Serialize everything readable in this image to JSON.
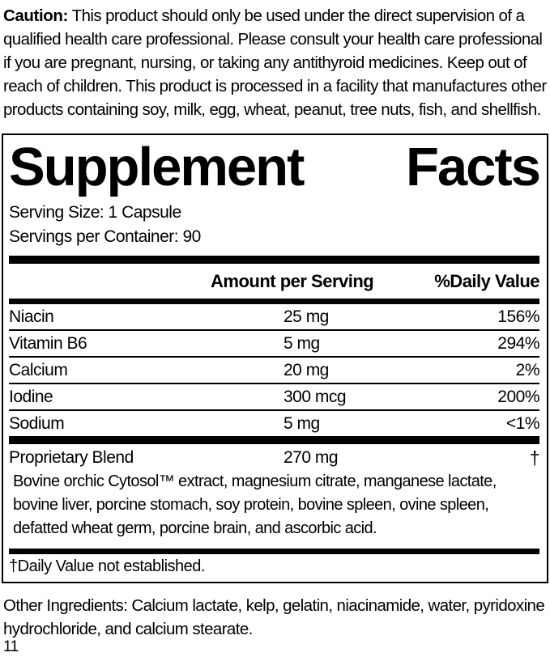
{
  "caution": {
    "label": "Caution:",
    "text": " This product should only be used under the direct supervision of a qualified health care professional. Please consult your health care professional if you are pregnant, nursing, or taking any antithyroid medicines. Keep out of reach of children. This product is processed in a facility that manufactures other products containing soy, milk, egg, wheat, peanut, tree nuts, fish, and shellfish."
  },
  "panel": {
    "title": "Supplement Facts",
    "serving_size": "Serving Size: 1 Capsule",
    "servings_per_container": "Servings per Container: 90",
    "columns": {
      "amount": "Amount per Serving",
      "daily_value": "%Daily Value"
    },
    "rows": [
      {
        "name": "Niacin",
        "amount": "25 mg",
        "dv": "156%"
      },
      {
        "name": "Vitamin B6",
        "amount": "5 mg",
        "dv": "294%"
      },
      {
        "name": "Calcium",
        "amount": "20 mg",
        "dv": "2%"
      },
      {
        "name": "Iodine",
        "amount": "300 mcg",
        "dv": "200%"
      },
      {
        "name": "Sodium",
        "amount": "5 mg",
        "dv": "<1%"
      }
    ],
    "blend": {
      "name": "Proprietary Blend",
      "amount": "270 mg",
      "dv": "†",
      "description": "Bovine orchic Cytosol™ extract, magnesium citrate, manganese lactate, bovine liver, porcine stomach, soy protein, bovine spleen, ovine spleen, defatted wheat germ, porcine brain, and ascorbic acid."
    },
    "footnote": "†Daily Value not established."
  },
  "other_ingredients": "Other Ingredients: Calcium lactate, kelp, gelatin, niacinamide, water, pyridoxine hydrochloride, and calcium stearate.",
  "page_number": "11",
  "colors": {
    "text": "#000000",
    "background": "#ffffff",
    "border": "#000000"
  }
}
